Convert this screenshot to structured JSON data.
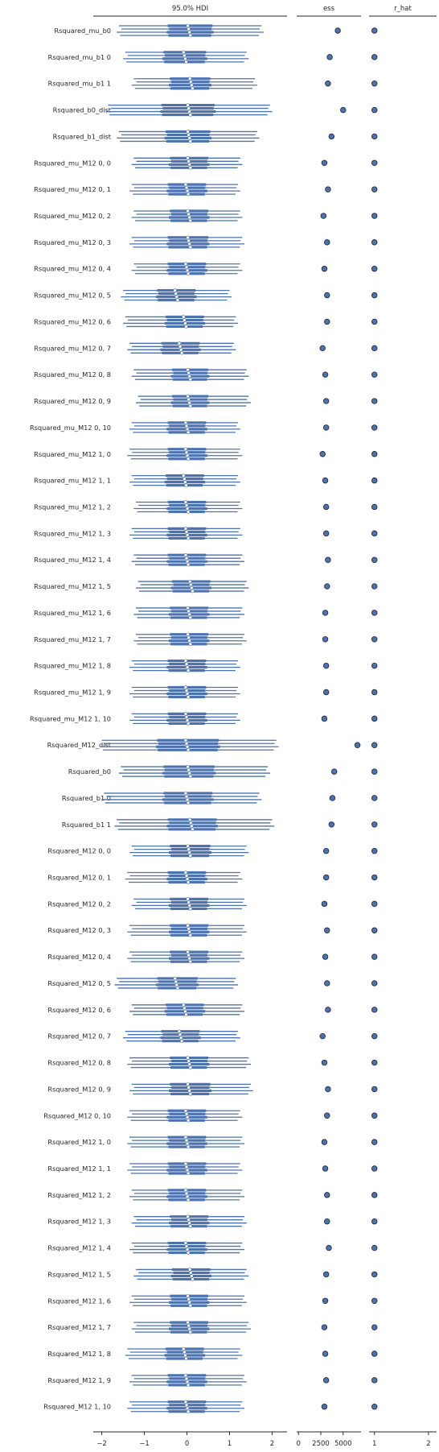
{
  "chart_data": [
    {
      "type": "forest",
      "title": "95.0% HDI",
      "xlim": [
        -2.2,
        2.35
      ],
      "xticks": [
        -2,
        -1,
        0,
        1,
        2
      ],
      "xtick_labels": [
        "−2",
        "−1",
        "0",
        "1",
        "2"
      ],
      "n_chains": 4,
      "rows": [
        {
          "label": "Rsquared_mu_b0",
          "median": 0.05,
          "hdi": [
            -1.6,
            1.75
          ],
          "iqr": [
            -0.45,
            0.6
          ]
        },
        {
          "label": "Rsquared_mu_b1 0",
          "median": -0.05,
          "hdi": [
            -1.45,
            1.4
          ],
          "iqr": [
            -0.55,
            0.45
          ]
        },
        {
          "label": "Rsquared_mu_b1 1",
          "median": 0.1,
          "hdi": [
            -1.25,
            1.6
          ],
          "iqr": [
            -0.4,
            0.55
          ]
        },
        {
          "label": "Rsquared_b0_dist",
          "median": 0.05,
          "hdi": [
            -1.85,
            1.95
          ],
          "iqr": [
            -0.6,
            0.65
          ]
        },
        {
          "label": "Rsquared_b1_dist",
          "median": 0.05,
          "hdi": [
            -1.6,
            1.65
          ],
          "iqr": [
            -0.5,
            0.55
          ]
        },
        {
          "label": "Rsquared_mu_M12 0, 0",
          "median": 0.05,
          "hdi": [
            -1.25,
            1.25
          ],
          "iqr": [
            -0.4,
            0.5
          ]
        },
        {
          "label": "Rsquared_mu_M12 0, 1",
          "median": 0.0,
          "hdi": [
            -1.3,
            1.2
          ],
          "iqr": [
            -0.45,
            0.45
          ]
        },
        {
          "label": "Rsquared_mu_M12 0, 2",
          "median": 0.05,
          "hdi": [
            -1.25,
            1.25
          ],
          "iqr": [
            -0.4,
            0.5
          ]
        },
        {
          "label": "Rsquared_mu_M12 0, 3",
          "median": 0.05,
          "hdi": [
            -1.3,
            1.3
          ],
          "iqr": [
            -0.45,
            0.5
          ]
        },
        {
          "label": "Rsquared_mu_M12 0, 4",
          "median": 0.0,
          "hdi": [
            -1.25,
            1.25
          ],
          "iqr": [
            -0.45,
            0.45
          ]
        },
        {
          "label": "Rsquared_mu_M12 0, 5",
          "median": -0.25,
          "hdi": [
            -1.5,
            1.0
          ],
          "iqr": [
            -0.7,
            0.2
          ]
        },
        {
          "label": "Rsquared_mu_M12 0, 6",
          "median": -0.05,
          "hdi": [
            -1.45,
            1.15
          ],
          "iqr": [
            -0.5,
            0.4
          ]
        },
        {
          "label": "Rsquared_mu_M12 0, 7",
          "median": -0.15,
          "hdi": [
            -1.35,
            1.1
          ],
          "iqr": [
            -0.6,
            0.3
          ]
        },
        {
          "label": "Rsquared_mu_M12 0, 8",
          "median": 0.05,
          "hdi": [
            -1.25,
            1.4
          ],
          "iqr": [
            -0.35,
            0.5
          ]
        },
        {
          "label": "Rsquared_mu_M12 0, 9",
          "median": 0.05,
          "hdi": [
            -1.15,
            1.45
          ],
          "iqr": [
            -0.35,
            0.5
          ]
        },
        {
          "label": "Rsquared_mu_M12 0, 10",
          "median": 0.0,
          "hdi": [
            -1.3,
            1.2
          ],
          "iqr": [
            -0.45,
            0.45
          ]
        },
        {
          "label": "Rsquared_mu_M12 1, 0",
          "median": 0.0,
          "hdi": [
            -1.35,
            1.25
          ],
          "iqr": [
            -0.45,
            0.45
          ]
        },
        {
          "label": "Rsquared_mu_M12 1, 1",
          "median": -0.05,
          "hdi": [
            -1.3,
            1.2
          ],
          "iqr": [
            -0.5,
            0.4
          ]
        },
        {
          "label": "Rsquared_mu_M12 1, 2",
          "median": 0.0,
          "hdi": [
            -1.2,
            1.25
          ],
          "iqr": [
            -0.45,
            0.45
          ]
        },
        {
          "label": "Rsquared_mu_M12 1, 3",
          "median": 0.0,
          "hdi": [
            -1.3,
            1.25
          ],
          "iqr": [
            -0.45,
            0.45
          ]
        },
        {
          "label": "Rsquared_mu_M12 1, 4",
          "median": 0.0,
          "hdi": [
            -1.25,
            1.3
          ],
          "iqr": [
            -0.45,
            0.45
          ]
        },
        {
          "label": "Rsquared_mu_M12 1, 5",
          "median": 0.1,
          "hdi": [
            -1.15,
            1.4
          ],
          "iqr": [
            -0.35,
            0.55
          ]
        },
        {
          "label": "Rsquared_mu_M12 1, 6",
          "median": 0.05,
          "hdi": [
            -1.2,
            1.3
          ],
          "iqr": [
            -0.4,
            0.5
          ]
        },
        {
          "label": "Rsquared_mu_M12 1, 7",
          "median": 0.05,
          "hdi": [
            -1.2,
            1.35
          ],
          "iqr": [
            -0.4,
            0.5
          ]
        },
        {
          "label": "Rsquared_mu_M12 1, 8",
          "median": 0.0,
          "hdi": [
            -1.3,
            1.2
          ],
          "iqr": [
            -0.45,
            0.45
          ]
        },
        {
          "label": "Rsquared_mu_M12 1, 9",
          "median": 0.0,
          "hdi": [
            -1.3,
            1.2
          ],
          "iqr": [
            -0.45,
            0.45
          ]
        },
        {
          "label": "Rsquared_mu_M12 1, 10",
          "median": 0.0,
          "hdi": [
            -1.3,
            1.2
          ],
          "iqr": [
            -0.45,
            0.45
          ]
        },
        {
          "label": "Rsquared_M12_dist",
          "median": 0.0,
          "hdi": [
            -2.0,
            2.1
          ],
          "iqr": [
            -0.7,
            0.75
          ]
        },
        {
          "label": "Rsquared_b0",
          "median": 0.05,
          "hdi": [
            -1.55,
            1.9
          ],
          "iqr": [
            -0.55,
            0.65
          ]
        },
        {
          "label": "Rsquared_b1 0",
          "median": 0.0,
          "hdi": [
            -1.95,
            1.7
          ],
          "iqr": [
            -0.55,
            0.6
          ]
        },
        {
          "label": "Rsquared_b1 1",
          "median": 0.1,
          "hdi": [
            -1.65,
            2.0
          ],
          "iqr": [
            -0.45,
            0.7
          ]
        },
        {
          "label": "Rsquared_M12 0, 0",
          "median": 0.05,
          "hdi": [
            -1.3,
            1.4
          ],
          "iqr": [
            -0.4,
            0.55
          ]
        },
        {
          "label": "Rsquared_M12 0, 1",
          "median": 0.0,
          "hdi": [
            -1.4,
            1.25
          ],
          "iqr": [
            -0.45,
            0.45
          ]
        },
        {
          "label": "Rsquared_M12 0, 2",
          "median": 0.05,
          "hdi": [
            -1.25,
            1.35
          ],
          "iqr": [
            -0.4,
            0.5
          ]
        },
        {
          "label": "Rsquared_M12 0, 3",
          "median": 0.05,
          "hdi": [
            -1.35,
            1.35
          ],
          "iqr": [
            -0.4,
            0.5
          ]
        },
        {
          "label": "Rsquared_M12 0, 4",
          "median": 0.05,
          "hdi": [
            -1.35,
            1.3
          ],
          "iqr": [
            -0.4,
            0.5
          ]
        },
        {
          "label": "Rsquared_M12 0, 5",
          "median": -0.25,
          "hdi": [
            -1.65,
            1.15
          ],
          "iqr": [
            -0.7,
            0.25
          ]
        },
        {
          "label": "Rsquared_M12 0, 6",
          "median": -0.05,
          "hdi": [
            -1.3,
            1.3
          ],
          "iqr": [
            -0.5,
            0.4
          ]
        },
        {
          "label": "Rsquared_M12 0, 7",
          "median": -0.15,
          "hdi": [
            -1.45,
            1.2
          ],
          "iqr": [
            -0.6,
            0.3
          ]
        },
        {
          "label": "Rsquared_M12 0, 8",
          "median": 0.05,
          "hdi": [
            -1.35,
            1.45
          ],
          "iqr": [
            -0.4,
            0.5
          ]
        },
        {
          "label": "Rsquared_M12 0, 9",
          "median": 0.05,
          "hdi": [
            -1.3,
            1.5
          ],
          "iqr": [
            -0.4,
            0.55
          ]
        },
        {
          "label": "Rsquared_M12 0, 10",
          "median": 0.0,
          "hdi": [
            -1.35,
            1.25
          ],
          "iqr": [
            -0.45,
            0.45
          ]
        },
        {
          "label": "Rsquared_M12 1, 0",
          "median": 0.0,
          "hdi": [
            -1.35,
            1.3
          ],
          "iqr": [
            -0.45,
            0.45
          ]
        },
        {
          "label": "Rsquared_M12 1, 1",
          "median": 0.0,
          "hdi": [
            -1.35,
            1.25
          ],
          "iqr": [
            -0.45,
            0.45
          ]
        },
        {
          "label": "Rsquared_M12 1, 2",
          "median": 0.0,
          "hdi": [
            -1.3,
            1.3
          ],
          "iqr": [
            -0.45,
            0.45
          ]
        },
        {
          "label": "Rsquared_M12 1, 3",
          "median": 0.05,
          "hdi": [
            -1.25,
            1.35
          ],
          "iqr": [
            -0.4,
            0.5
          ]
        },
        {
          "label": "Rsquared_M12 1, 4",
          "median": 0.0,
          "hdi": [
            -1.3,
            1.3
          ],
          "iqr": [
            -0.45,
            0.45
          ]
        },
        {
          "label": "Rsquared_M12 1, 5",
          "median": 0.1,
          "hdi": [
            -1.2,
            1.4
          ],
          "iqr": [
            -0.35,
            0.55
          ]
        },
        {
          "label": "Rsquared_M12 1, 6",
          "median": 0.05,
          "hdi": [
            -1.3,
            1.35
          ],
          "iqr": [
            -0.4,
            0.5
          ]
        },
        {
          "label": "Rsquared_M12 1, 7",
          "median": 0.05,
          "hdi": [
            -1.25,
            1.45
          ],
          "iqr": [
            -0.4,
            0.5
          ]
        },
        {
          "label": "Rsquared_M12 1, 8",
          "median": -0.05,
          "hdi": [
            -1.4,
            1.25
          ],
          "iqr": [
            -0.5,
            0.4
          ]
        },
        {
          "label": "Rsquared_M12 1, 9",
          "median": 0.0,
          "hdi": [
            -1.3,
            1.35
          ],
          "iqr": [
            -0.45,
            0.45
          ]
        },
        {
          "label": "Rsquared_M12 1, 10",
          "median": 0.0,
          "hdi": [
            -1.35,
            1.3
          ],
          "iqr": [
            -0.45,
            0.45
          ]
        }
      ]
    },
    {
      "type": "scatter",
      "title": "ess",
      "xlim": [
        -200,
        7000
      ],
      "xticks": [
        0,
        2500,
        5000
      ],
      "xtick_labels": [
        "0",
        "2500",
        "5000"
      ],
      "values": [
        4400,
        3500,
        3300,
        5000,
        3700,
        2900,
        3300,
        2800,
        3200,
        2900,
        3200,
        3200,
        2700,
        3000,
        3100,
        3100,
        2700,
        3000,
        3100,
        3100,
        3300,
        3200,
        3000,
        3000,
        3100,
        3100,
        2900,
        6600,
        4000,
        3800,
        3700,
        3100,
        3100,
        2900,
        3200,
        3000,
        3200,
        3300,
        2700,
        2900,
        3300,
        3200,
        2900,
        3000,
        3200,
        3200,
        3400,
        3100,
        3000,
        2900,
        3000,
        3100,
        2900
      ]
    },
    {
      "type": "scatter",
      "title": "r_hat",
      "xlim": [
        0.9,
        2.15
      ],
      "xticks": [
        1,
        2
      ],
      "xtick_labels": [
        "1",
        "2"
      ],
      "values": [
        1.0,
        1.0,
        1.0,
        1.0,
        1.0,
        1.0,
        1.0,
        1.0,
        1.0,
        1.0,
        1.0,
        1.0,
        1.0,
        1.0,
        1.0,
        1.0,
        1.0,
        1.0,
        1.0,
        1.0,
        1.0,
        1.0,
        1.0,
        1.0,
        1.0,
        1.0,
        1.0,
        1.0,
        1.0,
        1.0,
        1.0,
        1.0,
        1.0,
        1.0,
        1.0,
        1.0,
        1.0,
        1.0,
        1.0,
        1.0,
        1.0,
        1.0,
        1.0,
        1.0,
        1.0,
        1.0,
        1.0,
        1.0,
        1.0,
        1.0,
        1.0,
        1.0,
        1.0
      ]
    }
  ],
  "colors": {
    "marker": "#4c72b0",
    "marker_edge": "#1f1f3a",
    "axis": "#262626",
    "median_fill": "#ffffff"
  }
}
